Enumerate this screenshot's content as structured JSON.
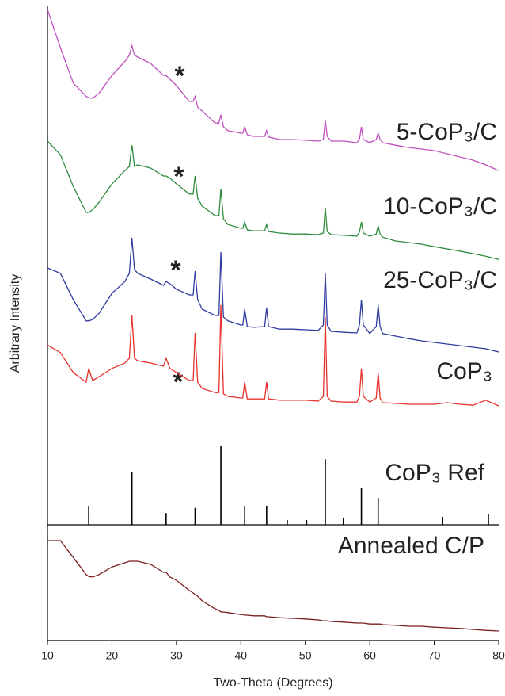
{
  "chart_data": {
    "type": "line",
    "xlabel": "Two-Theta (Degrees)",
    "ylabel": "Arbitrary Intensity",
    "xlim": [
      10,
      80
    ],
    "xticks": [
      10,
      20,
      30,
      40,
      50,
      60,
      70,
      80
    ],
    "ylim": [
      0,
      100
    ],
    "x": [
      10,
      12,
      14,
      16,
      16.4,
      17,
      18,
      20,
      22,
      22.7,
      23.1,
      23.5,
      24,
      26,
      28,
      28.4,
      29,
      30,
      32,
      32.6,
      32.9,
      33.3,
      34,
      36,
      36.6,
      36.9,
      37.3,
      38,
      40,
      40.3,
      40.6,
      41,
      42,
      43.7,
      44,
      44.3,
      46,
      48,
      50,
      52,
      52.8,
      53.1,
      53.4,
      54,
      56,
      58,
      58.4,
      58.7,
      59,
      60,
      61,
      61.3,
      61.6,
      62,
      64,
      66,
      68,
      70,
      72,
      74,
      76,
      78,
      80
    ],
    "series": [
      {
        "name": "5-CoP₃/C",
        "color": "#c050c0",
        "values": [
          99.5,
          93.5,
          87.9,
          85.8,
          85.6,
          85.5,
          86.3,
          89.1,
          91.3,
          92.3,
          93.8,
          92.3,
          92,
          91,
          89.1,
          89.1,
          88.5,
          87.5,
          85,
          85,
          85.8,
          84.1,
          83.5,
          81.6,
          81.6,
          82.9,
          81,
          80.4,
          80,
          80,
          81,
          79.75,
          79.5,
          79.5,
          80.4,
          79.4,
          79,
          79,
          78.9,
          78.75,
          79,
          82,
          79.5,
          78.75,
          78.75,
          78.5,
          79,
          81,
          79,
          78.5,
          79,
          80,
          79,
          78.5,
          78.1,
          77.75,
          77.5,
          77.25,
          76.75,
          76.25,
          75.75,
          75,
          74.1
        ]
      },
      {
        "name": "10-CoP₃/C",
        "color": "#2e8b3e",
        "values": [
          78.75,
          76.6,
          71.6,
          67.5,
          67.5,
          67.9,
          69.1,
          72,
          74.1,
          74.75,
          78.1,
          74.75,
          75,
          74.5,
          73.25,
          73.25,
          72.9,
          72,
          70.4,
          70.4,
          73.25,
          69.75,
          68.5,
          67,
          67,
          71.25,
          66.5,
          65.6,
          65,
          65,
          66,
          64.75,
          64.6,
          64.6,
          65.6,
          64.5,
          64.25,
          64.1,
          64.1,
          64,
          64.25,
          68.25,
          64.5,
          64,
          63.9,
          63.75,
          64.4,
          66,
          64.25,
          63.75,
          64.1,
          65.4,
          64.1,
          63.6,
          63,
          62.75,
          62.5,
          62.1,
          61.75,
          61.4,
          61,
          60.6,
          60.1
        ]
      },
      {
        "name": "25-CoP₃/C",
        "color": "#2f3b9e",
        "values": [
          58.75,
          57.9,
          53.75,
          50.4,
          50.4,
          50.6,
          51.6,
          54.75,
          56.6,
          57.9,
          63.5,
          58.5,
          57.9,
          57,
          56,
          56.6,
          56.25,
          55.4,
          54.5,
          54.5,
          58.25,
          53.75,
          52.25,
          51.25,
          51.25,
          61.25,
          51,
          50.4,
          49.75,
          49.75,
          52.25,
          49.5,
          49.4,
          49.5,
          52.5,
          49.5,
          49.1,
          49.1,
          49,
          48.9,
          49.75,
          57.9,
          49.75,
          48.75,
          48.6,
          48.5,
          49.75,
          53.75,
          49.75,
          48.4,
          49.5,
          52.9,
          49.5,
          48.4,
          48,
          47.6,
          47.25,
          47,
          46.75,
          46.5,
          46.25,
          46,
          45.5
        ]
      },
      {
        "name": "CoP₃",
        "color": "#e8322e",
        "values": [
          46.6,
          45.4,
          42.25,
          40.75,
          42.9,
          41,
          41.6,
          42.9,
          43.75,
          44.5,
          51.25,
          44.5,
          44.1,
          43.75,
          43.25,
          44.5,
          42.9,
          42.25,
          41,
          41,
          48.5,
          40.75,
          39.75,
          39.1,
          39.1,
          52.9,
          38.9,
          38.5,
          38.25,
          38.25,
          40.75,
          38.1,
          38.1,
          38.1,
          40.75,
          38.1,
          37.9,
          37.9,
          37.9,
          37.75,
          38.5,
          51,
          38.5,
          37.75,
          37.6,
          37.6,
          38.5,
          42.9,
          38.5,
          37.6,
          38.25,
          42.25,
          38.25,
          37.5,
          37.4,
          37.25,
          37.25,
          37.25,
          37.5,
          37.25,
          37.1,
          37.9,
          37
        ]
      },
      {
        "name": "CoP₃ Ref",
        "color": "#000000",
        "style": "stick",
        "x": [
          16.4,
          23.1,
          28.4,
          32.9,
          36.9,
          40.6,
          44.0,
          47.2,
          50.2,
          53.1,
          55.9,
          58.7,
          61.3,
          71.3,
          78.4
        ],
        "values": [
          21.25,
          26.6,
          20.1,
          20.9,
          30.75,
          21.25,
          21.25,
          19,
          19,
          28.6,
          19.25,
          24,
          22.5,
          19.5,
          20
        ]
      },
      {
        "name": "Annealed C/P",
        "color": "#7a1f1f",
        "values": [
          15.75,
          15.75,
          13.1,
          10.4,
          10.1,
          10,
          10.4,
          11.6,
          12.25,
          12.5,
          12.5,
          12.5,
          12.5,
          12,
          10.75,
          10.75,
          10,
          9.5,
          7.9,
          7.5,
          7.25,
          7,
          6.25,
          5,
          4.75,
          4.5,
          4.5,
          4.4,
          4.1,
          4.1,
          4,
          4,
          3.9,
          3.9,
          3.75,
          3.75,
          3.6,
          3.5,
          3.4,
          3.25,
          3.1,
          3.1,
          3.1,
          3,
          2.9,
          2.75,
          2.75,
          2.75,
          2.75,
          2.6,
          2.6,
          2.6,
          2.6,
          2.5,
          2.4,
          2.25,
          2.25,
          2.1,
          2,
          1.9,
          1.75,
          1.6,
          1.5
        ]
      }
    ],
    "annotations": [
      "*",
      "*",
      "*",
      "*"
    ]
  }
}
